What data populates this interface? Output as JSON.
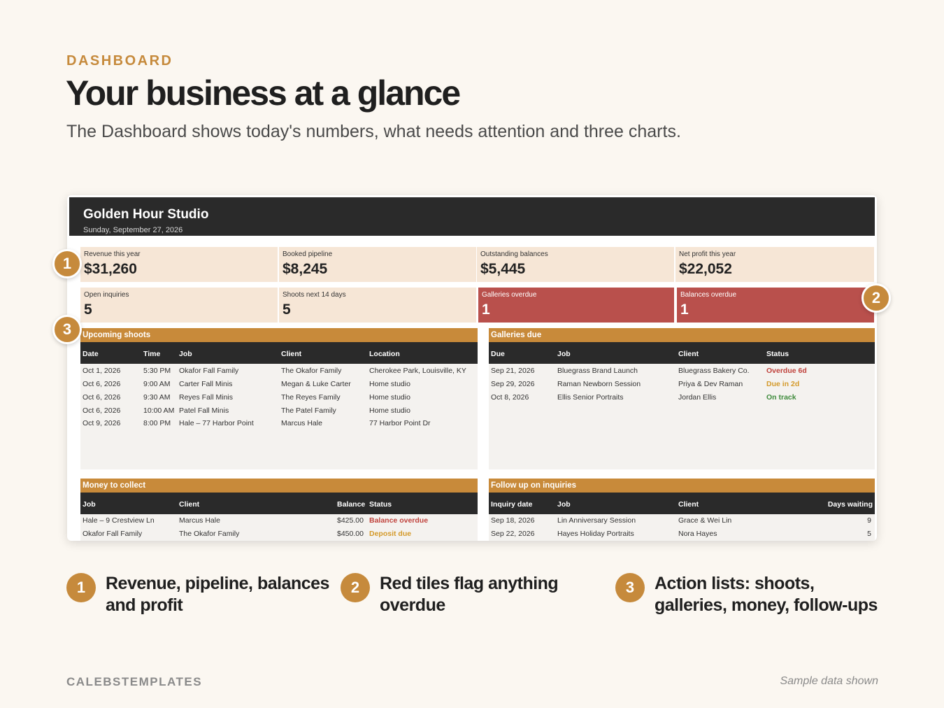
{
  "intro": {
    "eyebrow": "DASHBOARD",
    "headline": "Your business at a glance",
    "subhead": "The Dashboard shows today's numbers, what needs attention and three charts."
  },
  "app": {
    "title": "Golden Hour Studio",
    "date": "Sunday, September 27, 2026"
  },
  "kpis": [
    {
      "label": "Revenue this year",
      "value": "$31,260"
    },
    {
      "label": "Booked pipeline",
      "value": "$8,245"
    },
    {
      "label": "Outstanding balances",
      "value": "$5,445"
    },
    {
      "label": "Net profit this year",
      "value": "$22,052"
    },
    {
      "label": "Open inquiries",
      "value": "5"
    },
    {
      "label": "Shoots next 14 days",
      "value": "5"
    },
    {
      "label": "Galleries overdue",
      "value": "1"
    },
    {
      "label": "Balances overdue",
      "value": "1"
    }
  ],
  "alert_color": "#b9504c",
  "accent_color": "#c68a3c",
  "upcoming": {
    "title": "Upcoming shoots",
    "headers": [
      "Date",
      "Time",
      "Job",
      "Client",
      "Location"
    ],
    "rows": [
      [
        "Oct 1, 2026",
        "5:30 PM",
        "Okafor Fall Family",
        "The Okafor Family",
        "Cherokee Park, Louisville, KY"
      ],
      [
        "Oct 6, 2026",
        "9:00 AM",
        "Carter Fall Minis",
        "Megan & Luke Carter",
        "Home studio"
      ],
      [
        "Oct 6, 2026",
        "9:30 AM",
        "Reyes Fall Minis",
        "The Reyes Family",
        "Home studio"
      ],
      [
        "Oct 6, 2026",
        "10:00 AM",
        "Patel Fall Minis",
        "The Patel Family",
        "Home studio"
      ],
      [
        "Oct 9, 2026",
        "8:00 PM",
        "Hale – 77 Harbor Point",
        "Marcus Hale",
        "77 Harbor Point Dr"
      ]
    ]
  },
  "galleries": {
    "title": "Galleries due",
    "headers": [
      "Due",
      "Job",
      "Client",
      "Status"
    ],
    "rows": [
      [
        "Sep 21, 2026",
        "Bluegrass Brand Launch",
        "Bluegrass Bakery Co.",
        "Overdue 6d"
      ],
      [
        "Sep 29, 2026",
        "Raman Newborn Session",
        "Priya & Dev Raman",
        "Due in 2d"
      ],
      [
        "Oct 8, 2026",
        "Ellis Senior Portraits",
        "Jordan Ellis",
        "On track"
      ]
    ]
  },
  "money": {
    "title": "Money to collect",
    "headers": [
      "Job",
      "Client",
      "Balance",
      "Status"
    ],
    "rows": [
      [
        "Hale – 9 Crestview Ln",
        "Marcus Hale",
        "$425.00",
        "Balance overdue"
      ],
      [
        "Okafor Fall Family",
        "The Okafor Family",
        "$450.00",
        "Deposit due"
      ]
    ]
  },
  "followup": {
    "title": "Follow up on inquiries",
    "headers": [
      "Inquiry date",
      "Job",
      "Client",
      "Days waiting"
    ],
    "rows": [
      [
        "Sep 18, 2026",
        "Lin Anniversary Session",
        "Grace & Wei Lin",
        "9"
      ],
      [
        "Sep 22, 2026",
        "Hayes Holiday Portraits",
        "Nora Hayes",
        "5"
      ]
    ]
  },
  "callouts": {
    "badges": [
      "1",
      "2",
      "3"
    ],
    "notes": [
      {
        "num": "1",
        "text": "Revenue, pipeline, balances and profit"
      },
      {
        "num": "2",
        "text": "Red tiles flag anything overdue"
      },
      {
        "num": "3",
        "text": "Action lists: shoots, galleries, money, follow-ups"
      }
    ]
  },
  "footer": {
    "brand": "CALEBSTEMPLATES",
    "note": "Sample data shown"
  }
}
